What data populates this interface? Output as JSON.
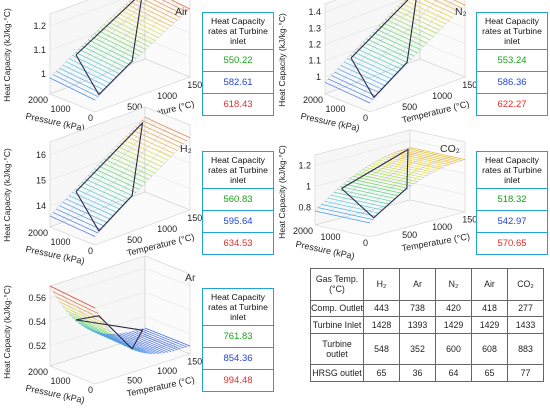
{
  "panels": [
    {
      "gas": "Air",
      "zlabel": "Heat Capacity (kJ/kg·°C)",
      "zticks": [
        "1.2",
        "1.1",
        "1"
      ],
      "xlabel": "Temperature (°C)",
      "ylabel": "Pressure (kPa)",
      "yticks": [
        "2000",
        "1000",
        "0"
      ],
      "xticks": [
        "500",
        "1000",
        "1500"
      ],
      "box": {
        "header": "Heat Capacity rates at Turbine inlet",
        "values": [
          "550.22",
          "582.61",
          "618.43"
        ]
      }
    },
    {
      "gas": "N₂",
      "zlabel": "Heat Capacity (kJ/kg·°C)",
      "zticks": [
        "1.4",
        "1.3",
        "1.2",
        "1.1",
        "1"
      ],
      "xlabel": "Temperature (°C)",
      "ylabel": "Pressure (kPa)",
      "yticks": [
        "2000",
        "1000",
        "0"
      ],
      "xticks": [
        "500",
        "1000",
        "1500"
      ],
      "box": {
        "header": "Heat Capacity rates at Turbine inlet",
        "values": [
          "553.24",
          "586.36",
          "622.27"
        ]
      }
    },
    {
      "gas": "H₂",
      "zlabel": "Heat Capacity (kJ/kg·°C)",
      "zticks": [
        "16",
        "15",
        "14"
      ],
      "xlabel": "Temperature (°C)",
      "ylabel": "Pressure (kPa)",
      "yticks": [
        "2000",
        "1000",
        "0"
      ],
      "xticks": [
        "500",
        "1000",
        "1500"
      ],
      "box": {
        "header": "Heat Capacity rates at Turbine inlet",
        "values": [
          "560.83",
          "595.64",
          "634.53"
        ]
      }
    },
    {
      "gas": "CO₂",
      "zlabel": "Heat Capacity (kJ/kg·°C)",
      "zticks": [
        "1.2",
        "1",
        "0.8"
      ],
      "xlabel": "Temperature (°C)",
      "ylabel": "Pressure (kPa)",
      "yticks": [
        "2000",
        "1000",
        "0"
      ],
      "xticks": [
        "500",
        "1000",
        "1500"
      ],
      "box": {
        "header": "Heat Capacity rates at Turbine inlet",
        "values": [
          "518.32",
          "542.97",
          "570.65"
        ]
      }
    },
    {
      "gas": "Ar",
      "zlabel": "Heat Capacity (kJ/kg·°C)",
      "zticks": [
        "0.56",
        "0.54",
        "0.52"
      ],
      "xlabel": "Temperature (°C)",
      "ylabel": "Pressure (kPa)",
      "yticks": [
        "2000",
        "1000",
        "0"
      ],
      "xticks": [
        "500",
        "1000",
        "1500"
      ],
      "box": {
        "header": "Heat Capacity rates at Turbine inlet",
        "values": [
          "761.83",
          "854.36",
          "994.48"
        ]
      }
    }
  ],
  "value_colors": [
    "#1aa31a",
    "#2244dd",
    "#e03030"
  ],
  "table": {
    "header": [
      "Gas Temp. (°C)",
      "H₂",
      "Ar",
      "N₂",
      "Air",
      "CO₂"
    ],
    "rows": [
      [
        "Comp. Outlet",
        "443",
        "738",
        "420",
        "418",
        "277"
      ],
      [
        "Turbine Inlet",
        "1428",
        "1393",
        "1429",
        "1429",
        "1433"
      ],
      [
        "Turbine outlet",
        "548",
        "352",
        "600",
        "608",
        "883"
      ],
      [
        "HRSG outlet",
        "65",
        "36",
        "64",
        "65",
        "77"
      ]
    ]
  },
  "chart_data": [
    {
      "type": "surface",
      "title": "Air",
      "zlabel": "Heat Capacity (kJ/kg·°C)",
      "xlabel": "Temperature (°C)",
      "ylabel": "Pressure (kPa)",
      "zlim": [
        0.95,
        1.25
      ],
      "xlim": [
        0,
        1500
      ],
      "ylim": [
        0,
        2000
      ]
    },
    {
      "type": "surface",
      "title": "N₂",
      "zlabel": "Heat Capacity (kJ/kg·°C)",
      "xlabel": "Temperature (°C)",
      "ylabel": "Pressure (kPa)",
      "zlim": [
        1.0,
        1.4
      ],
      "xlim": [
        0,
        1500
      ],
      "ylim": [
        0,
        2000
      ]
    },
    {
      "type": "surface",
      "title": "H₂",
      "zlabel": "Heat Capacity (kJ/kg·°C)",
      "xlabel": "Temperature (°C)",
      "ylabel": "Pressure (kPa)",
      "zlim": [
        14,
        16.5
      ],
      "xlim": [
        0,
        1500
      ],
      "ylim": [
        0,
        2000
      ]
    },
    {
      "type": "surface",
      "title": "CO₂",
      "zlabel": "Heat Capacity (kJ/kg·°C)",
      "xlabel": "Temperature (°C)",
      "ylabel": "Pressure (kPa)",
      "zlim": [
        0.8,
        1.3
      ],
      "xlim": [
        0,
        1500
      ],
      "ylim": [
        0,
        2000
      ]
    },
    {
      "type": "surface",
      "title": "Ar",
      "zlabel": "Heat Capacity (kJ/kg·°C)",
      "xlabel": "Temperature (°C)",
      "ylabel": "Pressure (kPa)",
      "zlim": [
        0.51,
        0.56
      ],
      "xlim": [
        0,
        1500
      ],
      "ylim": [
        0,
        2000
      ]
    }
  ]
}
